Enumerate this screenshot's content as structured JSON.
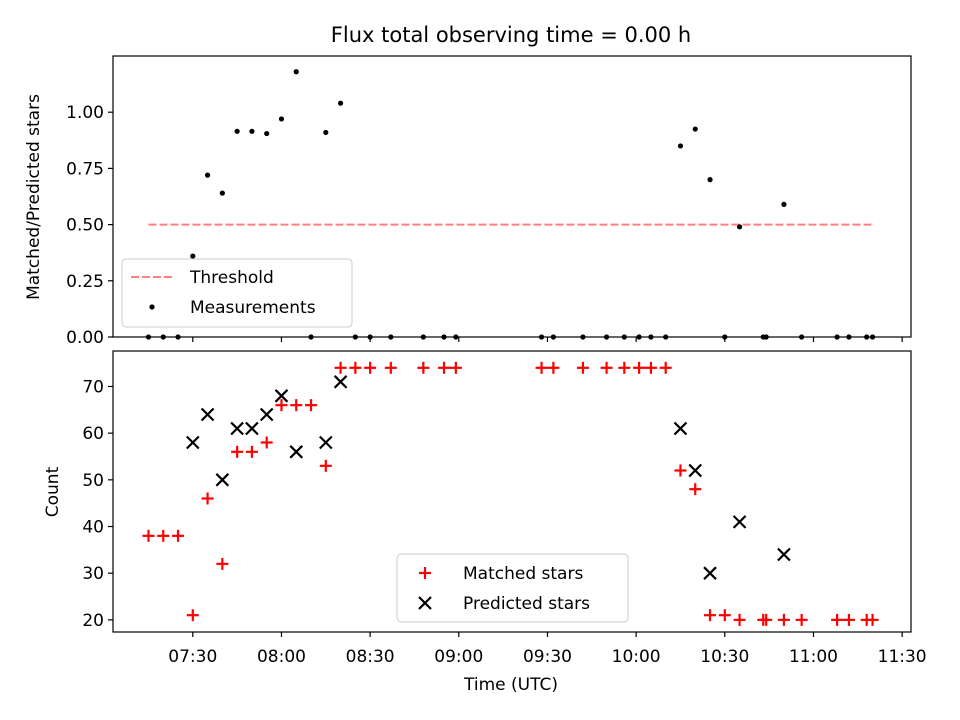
{
  "chart_data": [
    {
      "type": "scatter",
      "title": "Flux total observing time = 0.00 h",
      "ylabel": "Matched/Predicted stars",
      "xlabel": "",
      "xlim": [
        "07:03",
        "11:33"
      ],
      "ylim": [
        0,
        1.25
      ],
      "yticks": [
        {
          "v": 0.0,
          "label": "0.00"
        },
        {
          "v": 0.25,
          "label": "0.25"
        },
        {
          "v": 0.5,
          "label": "0.50"
        },
        {
          "v": 0.75,
          "label": "0.75"
        },
        {
          "v": 1.0,
          "label": "1.00"
        }
      ],
      "legend": {
        "placement": "lower-left",
        "entries": [
          {
            "label": "Threshold",
            "marker": "dashed-line",
            "color": "#ff7f7f"
          },
          {
            "label": "Measurements",
            "marker": "dot",
            "color": "#000000"
          }
        ]
      },
      "threshold": {
        "name": "Threshold",
        "value": 0.5,
        "x_start": "07:15",
        "x_end": "11:20",
        "color": "#ff7f7f"
      },
      "series": [
        {
          "name": "Measurements",
          "color": "#000000",
          "points": [
            [
              "07:15",
              0
            ],
            [
              "07:20",
              0
            ],
            [
              "07:25",
              0
            ],
            [
              "07:30",
              0.36
            ],
            [
              "07:35",
              0.72
            ],
            [
              "07:40",
              0.64
            ],
            [
              "07:45",
              0.915
            ],
            [
              "07:50",
              0.915
            ],
            [
              "07:55",
              0.905
            ],
            [
              "08:00",
              0.97
            ],
            [
              "08:05",
              1.18
            ],
            [
              "08:10",
              0
            ],
            [
              "08:15",
              0.91
            ],
            [
              "08:20",
              1.04
            ],
            [
              "08:25",
              0
            ],
            [
              "08:30",
              0
            ],
            [
              "08:37",
              0
            ],
            [
              "08:48",
              0
            ],
            [
              "08:55",
              0
            ],
            [
              "08:59",
              0
            ],
            [
              "09:28",
              0
            ],
            [
              "09:32",
              0
            ],
            [
              "09:42",
              0
            ],
            [
              "09:50",
              0
            ],
            [
              "09:56",
              0
            ],
            [
              "10:01",
              0
            ],
            [
              "10:05",
              0
            ],
            [
              "10:10",
              0
            ],
            [
              "10:15",
              0.85
            ],
            [
              "10:20",
              0.925
            ],
            [
              "10:25",
              0.7
            ],
            [
              "10:30",
              0
            ],
            [
              "10:35",
              0.49
            ],
            [
              "10:43",
              0
            ],
            [
              "10:44",
              0
            ],
            [
              "10:50",
              0.59
            ],
            [
              "10:56",
              0
            ],
            [
              "11:08",
              0
            ],
            [
              "11:12",
              0
            ],
            [
              "11:18",
              0
            ],
            [
              "11:20",
              0
            ]
          ]
        }
      ]
    },
    {
      "type": "scatter",
      "title": "",
      "xlabel": "Time (UTC)",
      "ylabel": "Count",
      "xlim": [
        "07:03",
        "11:33"
      ],
      "ylim": [
        17.4,
        77.6
      ],
      "xticks": [
        "07:30",
        "08:00",
        "08:30",
        "09:00",
        "09:30",
        "10:00",
        "10:30",
        "11:00",
        "11:30"
      ],
      "yticks": [
        20,
        30,
        40,
        50,
        60,
        70
      ],
      "legend": {
        "placement": "lower-center",
        "entries": [
          {
            "label": "Matched stars",
            "marker": "plus",
            "color": "#ff0000"
          },
          {
            "label": "Predicted stars",
            "marker": "x",
            "color": "#000000"
          }
        ]
      },
      "series": [
        {
          "name": "Matched stars",
          "color": "#ff0000",
          "marker": "plus",
          "points": [
            [
              "07:15",
              38
            ],
            [
              "07:20",
              38
            ],
            [
              "07:25",
              38
            ],
            [
              "07:30",
              21
            ],
            [
              "07:35",
              46
            ],
            [
              "07:40",
              32
            ],
            [
              "07:45",
              56
            ],
            [
              "07:50",
              56
            ],
            [
              "07:55",
              58
            ],
            [
              "08:00",
              66
            ],
            [
              "08:05",
              66
            ],
            [
              "08:10",
              66
            ],
            [
              "08:15",
              53
            ],
            [
              "08:20",
              74
            ],
            [
              "08:25",
              74
            ],
            [
              "08:30",
              74
            ],
            [
              "08:37",
              74
            ],
            [
              "08:48",
              74
            ],
            [
              "08:55",
              74
            ],
            [
              "08:59",
              74
            ],
            [
              "09:28",
              74
            ],
            [
              "09:32",
              74
            ],
            [
              "09:42",
              74
            ],
            [
              "09:50",
              74
            ],
            [
              "09:56",
              74
            ],
            [
              "10:01",
              74
            ],
            [
              "10:05",
              74
            ],
            [
              "10:10",
              74
            ],
            [
              "10:15",
              52
            ],
            [
              "10:20",
              48
            ],
            [
              "10:25",
              21
            ],
            [
              "10:30",
              21
            ],
            [
              "10:35",
              20
            ],
            [
              "10:43",
              20
            ],
            [
              "10:44",
              20
            ],
            [
              "10:50",
              20
            ],
            [
              "10:56",
              20
            ],
            [
              "11:08",
              20
            ],
            [
              "11:12",
              20
            ],
            [
              "11:18",
              20
            ],
            [
              "11:20",
              20
            ]
          ]
        },
        {
          "name": "Predicted stars",
          "color": "#000000",
          "marker": "x",
          "points": [
            [
              "07:30",
              58
            ],
            [
              "07:35",
              64
            ],
            [
              "07:40",
              50
            ],
            [
              "07:45",
              61
            ],
            [
              "07:50",
              61
            ],
            [
              "07:55",
              64
            ],
            [
              "08:00",
              68
            ],
            [
              "08:05",
              56
            ],
            [
              "08:15",
              58
            ],
            [
              "08:20",
              71
            ],
            [
              "10:15",
              61
            ],
            [
              "10:20",
              52
            ],
            [
              "10:25",
              30
            ],
            [
              "10:35",
              41
            ],
            [
              "10:50",
              34
            ]
          ]
        }
      ]
    }
  ]
}
